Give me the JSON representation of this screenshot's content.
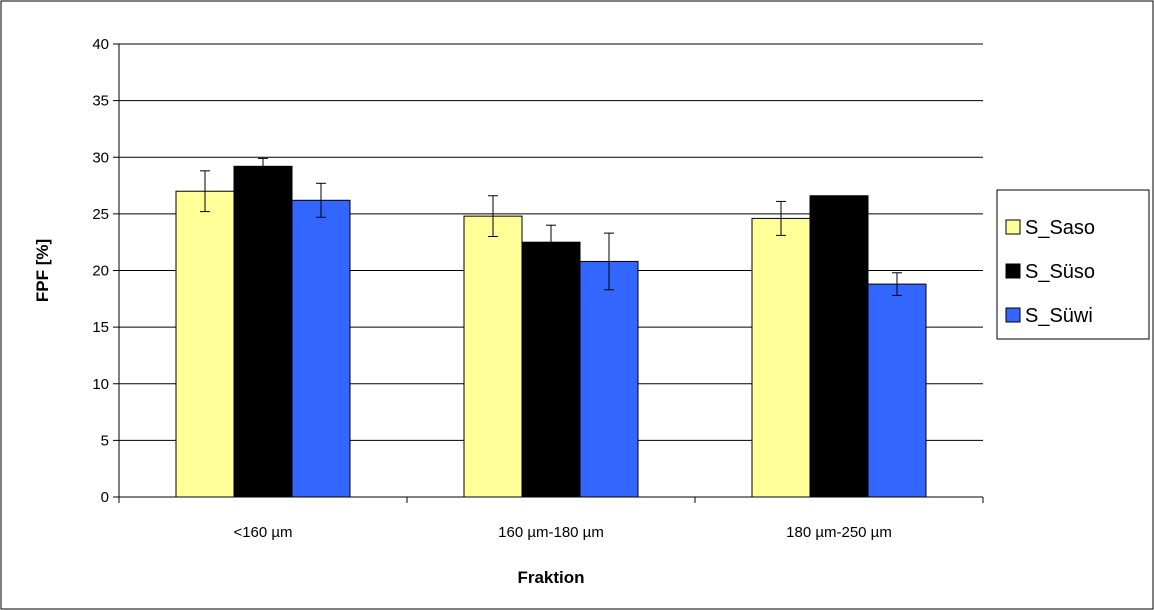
{
  "colors": {
    "background": "#ffffff",
    "frame": "#000000",
    "grid": "#000000",
    "S_Saso": "#ffff99",
    "S_Süso": "#000000",
    "S_Süwi": "#3366ff"
  },
  "chart_data": {
    "type": "bar",
    "title": "",
    "xlabel": "Fraktion",
    "ylabel": "FPF [%]",
    "ylim": [
      0,
      40
    ],
    "yticks": [
      0,
      5,
      10,
      15,
      20,
      25,
      30,
      35,
      40
    ],
    "grid": true,
    "legend_position": "right",
    "categories": [
      "<160 µm",
      "160 µm-180 µm",
      "180 µm-250 µm"
    ],
    "series": [
      {
        "name": "S_Saso",
        "color": "#ffff99",
        "values": [
          27.0,
          24.8,
          24.6
        ],
        "errors": [
          1.8,
          1.8,
          1.5
        ]
      },
      {
        "name": "S_Süso",
        "color": "#000000",
        "values": [
          29.2,
          22.5,
          26.6
        ],
        "errors": [
          0.7,
          1.5,
          0.0
        ]
      },
      {
        "name": "S_Süwi",
        "color": "#3366ff",
        "values": [
          26.2,
          20.8,
          18.8
        ],
        "errors": [
          1.5,
          2.5,
          1.0
        ]
      }
    ]
  }
}
